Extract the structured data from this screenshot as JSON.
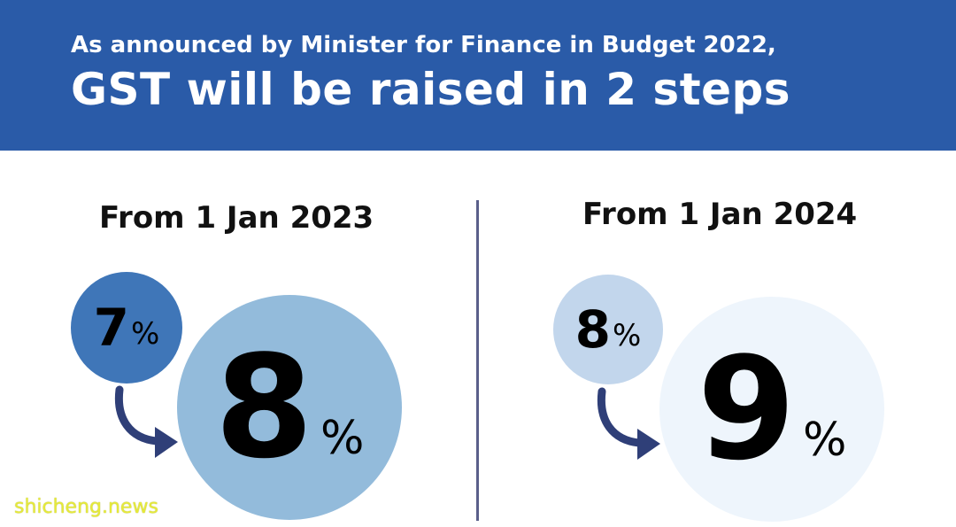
{
  "header": {
    "subtitle": "As announced by Minister for Finance in Budget 2022,",
    "title": "GST will be raised in 2 steps",
    "bg_color": "#2a5ba8"
  },
  "steps": [
    {
      "date_label": "From 1 Jan 2023",
      "from_rate": "7",
      "to_rate": "8",
      "percent_sign": "%",
      "from_circle_color": "#3f76b8",
      "to_circle_color": "#93bbdb"
    },
    {
      "date_label": "From 1 Jan 2024",
      "from_rate": "8",
      "to_rate": "9",
      "percent_sign": "%",
      "from_circle_color": "#c2d6ec",
      "to_circle_color": "#eef5fc"
    }
  ],
  "arrow_color": "#2f3f78",
  "divider_color": "#5a5f8a",
  "watermark": "shicheng.news"
}
